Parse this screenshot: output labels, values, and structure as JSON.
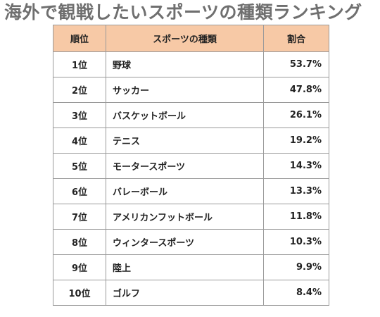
{
  "title": "海外で観戦したいスポーツの種類ランキング",
  "table": {
    "headers": {
      "rank": "順位",
      "sport": "スポーツの種類",
      "ratio": "割合"
    },
    "rows": [
      {
        "rank": "1位",
        "sport": "野球",
        "ratio": "53.7%"
      },
      {
        "rank": "2位",
        "sport": "サッカー",
        "ratio": "47.8%"
      },
      {
        "rank": "3位",
        "sport": "バスケットボール",
        "ratio": "26.1%"
      },
      {
        "rank": "4位",
        "sport": "テニス",
        "ratio": "19.2%"
      },
      {
        "rank": "5位",
        "sport": "モータースポーツ",
        "ratio": "14.3%"
      },
      {
        "rank": "6位",
        "sport": "バレーボール",
        "ratio": "13.3%"
      },
      {
        "rank": "7位",
        "sport": "アメリカンフットボール",
        "ratio": "11.8%"
      },
      {
        "rank": "8位",
        "sport": "ウィンタースポーツ",
        "ratio": "10.3%"
      },
      {
        "rank": "9位",
        "sport": "陸上",
        "ratio": "9.9%"
      },
      {
        "rank": "10位",
        "sport": "ゴルフ",
        "ratio": "8.4%"
      }
    ]
  },
  "colors": {
    "header_background": "#f7c9a6",
    "title_text": "#6f6f6f",
    "border": "#9a9a9a"
  }
}
